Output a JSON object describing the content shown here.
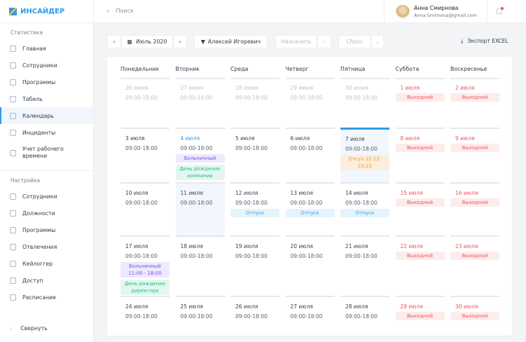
{
  "brand": "ИНСАЙДЕР",
  "sidebar": {
    "section1": "Статистика",
    "items1": [
      {
        "label": "Главная",
        "icon": "grid-icon"
      },
      {
        "label": "Сотрудники",
        "icon": "user-icon"
      },
      {
        "label": "Программы",
        "icon": "programs-icon"
      },
      {
        "label": "Табель",
        "icon": "table-icon"
      },
      {
        "label": "Календарь",
        "icon": "calendar-icon",
        "active": true
      },
      {
        "label": "Инциденты",
        "icon": "warning-icon"
      },
      {
        "label": "Учет рабочего времени",
        "icon": "stopwatch-icon"
      }
    ],
    "section2": "Настройка",
    "items2": [
      {
        "label": "Сотрудники",
        "icon": "user-icon"
      },
      {
        "label": "Должности",
        "icon": "badge-icon"
      },
      {
        "label": "Программы",
        "icon": "programs-icon"
      },
      {
        "label": "Отвлечения",
        "icon": "clock-icon"
      },
      {
        "label": "Кейлоггер",
        "icon": "keyboard-icon"
      },
      {
        "label": "Доступ",
        "icon": "lock-icon"
      },
      {
        "label": "Расписание",
        "icon": "schedule-icon"
      }
    ],
    "collapse": "Свернуть"
  },
  "header": {
    "search_placeholder": "Поиск",
    "user_name": "Анна Смирнова",
    "user_email": "Anna.Smirnova@gmail.com"
  },
  "toolbar": {
    "month": "Июль 2020",
    "filter": "Алексей Игоревич",
    "assign": "Назначить",
    "reset": "Сброс",
    "export": "Экспорт EXCEL"
  },
  "colors": {
    "accent": "#2f9bea",
    "weekend": "#f0525a"
  },
  "calendar": {
    "days": [
      "Понедельник",
      "Вторник",
      "Среда",
      "Четверг",
      "Пятница",
      "Суббота",
      "Воскресенье"
    ],
    "weeks": [
      [
        {
          "d": "26 июня",
          "t": "09:00-18:00",
          "s": "muted"
        },
        {
          "d": "27 июня",
          "t": "09:00-18:00",
          "s": "muted"
        },
        {
          "d": "28 июня",
          "t": "09:00-18:00",
          "s": "muted"
        },
        {
          "d": "29 июня",
          "t": "09:00-18:00",
          "s": "muted"
        },
        {
          "d": "30 июня",
          "t": "09:00-18:00",
          "s": "muted"
        },
        {
          "d": "1 июля",
          "s": "wk",
          "ev": [
            {
              "l": "Выходной",
              "k": "weekend"
            }
          ]
        },
        {
          "d": "2 июля",
          "s": "wk",
          "ev": [
            {
              "l": "Выходной",
              "k": "weekend"
            }
          ]
        }
      ],
      [
        {
          "d": "3 июля",
          "t": "09:00-18:00"
        },
        {
          "d": "4 июля",
          "t": "09:00-18:00",
          "s": "today",
          "ev": [
            {
              "l": "Больничный",
              "k": "sick"
            },
            {
              "l": "День рождение компании",
              "k": "bday"
            }
          ]
        },
        {
          "d": "5 июля",
          "t": "09:00-18:00"
        },
        {
          "d": "6 июля",
          "t": "09:00-18:00"
        },
        {
          "d": "7 июля",
          "t": "09:00-18:00",
          "s": "sel",
          "ev": [
            {
              "l": "Отгул 22:22- 23:22",
              "k": "off"
            }
          ]
        },
        {
          "d": "8 июля",
          "s": "wk",
          "ev": [
            {
              "l": "Выходной",
              "k": "weekend"
            }
          ]
        },
        {
          "d": "9 июля",
          "s": "wk",
          "ev": [
            {
              "l": "Выходной",
              "k": "weekend"
            }
          ]
        }
      ],
      [
        {
          "d": "10 июля",
          "t": "09:00-18:00"
        },
        {
          "d": "11 июля",
          "t": "09:00-18:00",
          "s": "shade"
        },
        {
          "d": "12 июля",
          "t": "09:00-18:00",
          "ev": [
            {
              "l": "Отпуск",
              "k": "vac"
            }
          ]
        },
        {
          "d": "13 июля",
          "t": "09:00-18:00",
          "ev": [
            {
              "l": "Отпуск",
              "k": "vac"
            }
          ]
        },
        {
          "d": "14 июля",
          "t": "09:00-18:00",
          "ev": [
            {
              "l": "Отпуск",
              "k": "vac"
            }
          ]
        },
        {
          "d": "15 июля",
          "s": "wk",
          "ev": [
            {
              "l": "Выходной",
              "k": "weekend"
            }
          ]
        },
        {
          "d": "16 июля",
          "s": "wk",
          "ev": [
            {
              "l": "Выходной",
              "k": "weekend"
            }
          ]
        }
      ],
      [
        {
          "d": "17 июля",
          "t": "09:00-18:00",
          "ev": [
            {
              "l": "Больничный 11:00 - 18:00",
              "k": "sick"
            },
            {
              "l": "День рождение директора",
              "k": "bday"
            }
          ]
        },
        {
          "d": "18 июля",
          "t": "09:00-18:00"
        },
        {
          "d": "19 июля",
          "t": "09:00-18:00"
        },
        {
          "d": "20 июля",
          "t": "09:00-18:00"
        },
        {
          "d": "21 июля",
          "t": "09:00-18:00"
        },
        {
          "d": "22 июля",
          "s": "wk",
          "ev": [
            {
              "l": "Выходной",
              "k": "weekend"
            }
          ]
        },
        {
          "d": "23 июля",
          "s": "wk",
          "ev": [
            {
              "l": "Выходной",
              "k": "weekend"
            }
          ]
        }
      ],
      [
        {
          "d": "24 июля",
          "t": "09:00-18:00"
        },
        {
          "d": "25 июля",
          "t": "09:00-18:00"
        },
        {
          "d": "26 июля",
          "t": "09:00-18:00"
        },
        {
          "d": "27 июля",
          "t": "09:00-18:00"
        },
        {
          "d": "28 июля",
          "t": "09:00-18:00"
        },
        {
          "d": "29 июля",
          "s": "wk",
          "ev": [
            {
              "l": "Выходной",
              "k": "weekend"
            }
          ]
        },
        {
          "d": "30 июля",
          "s": "wk",
          "ev": [
            {
              "l": "Выходной",
              "k": "weekend"
            }
          ]
        }
      ]
    ]
  }
}
